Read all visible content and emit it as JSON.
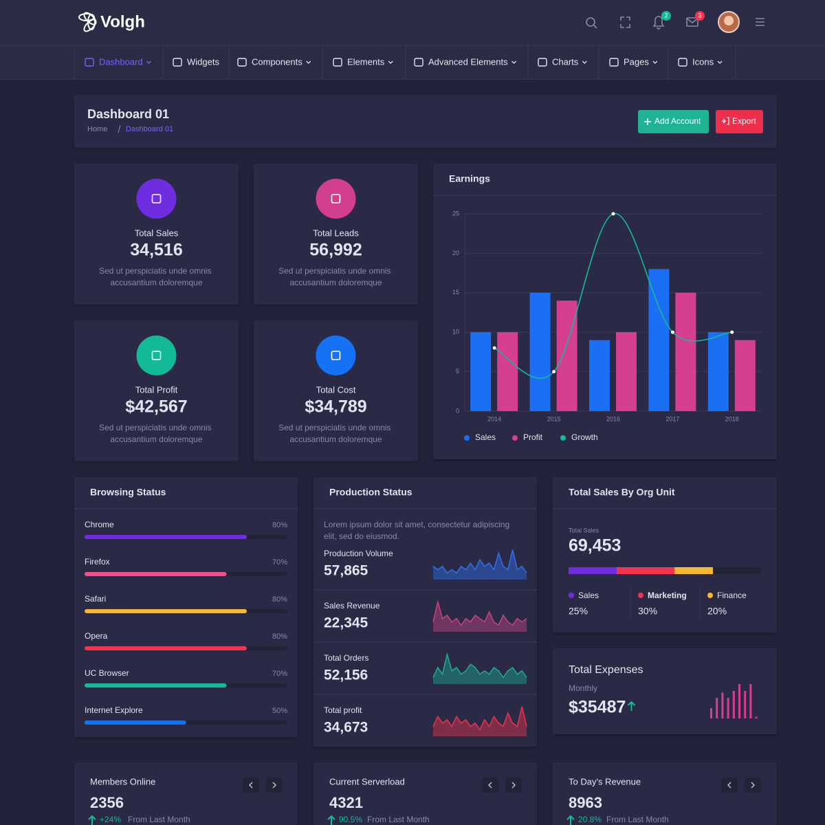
{
  "header": {
    "brand": "Volgh",
    "notifications_badge": "2",
    "mail_badge": "3"
  },
  "nav": [
    "Dashboard",
    "Widgets",
    "Components",
    "Elements",
    "Advanced Elements",
    "Charts",
    "Pages",
    "Icons"
  ],
  "page_header": {
    "title": "Dashboard 01",
    "breadcrumb": [
      "Home",
      "Dashboard 01"
    ],
    "buttons": [
      "Add Account",
      "Export"
    ]
  },
  "stats": [
    {
      "label": "Total Sales",
      "value": "34,516",
      "text": "Sed ut perspiciatis unde omnis accusantium doloremque",
      "color": "#6e2ee0"
    },
    {
      "label": "Total Leads",
      "value": "56,992",
      "text": "Sed ut perspiciatis unde omnis accusantium doloremque",
      "color": "#d33f8f"
    },
    {
      "label": "Total Profit",
      "value": "$42,567",
      "text": "Sed ut perspiciatis unde omnis accusantium doloremque",
      "color": "#12ba98"
    },
    {
      "label": "Total Cost",
      "value": "$34,789",
      "text": "Sed ut perspiciatis unde omnis accusantium doloremque",
      "color": "#1672f5"
    }
  ],
  "chart_data": {
    "type": "bar",
    "title": "Earnings",
    "categories": [
      "2014",
      "2015",
      "2016",
      "2017",
      "2018"
    ],
    "series": [
      {
        "name": "Sales",
        "color": "#1a6ff5",
        "values": [
          10,
          15,
          9,
          18,
          10
        ]
      },
      {
        "name": "Profit",
        "color": "#d63f90",
        "values": [
          10,
          14,
          10,
          15,
          9
        ]
      },
      {
        "name": "Growth",
        "color": "#12ba98",
        "type": "line",
        "values": [
          8,
          5,
          25,
          10,
          10
        ]
      }
    ],
    "ylim": [
      0,
      25
    ],
    "yticks": [
      0,
      5,
      10,
      15,
      20,
      25
    ],
    "grid": true
  },
  "browsing": {
    "title": "Browsing Status",
    "items": [
      {
        "name": "Chrome",
        "value": 80,
        "label": "80%",
        "color": "#6e2ee0"
      },
      {
        "name": "Firefox",
        "value": 70,
        "label": "70%",
        "color": "#f2508c"
      },
      {
        "name": "Safari",
        "value": 80,
        "label": "80%",
        "color": "#f7b731"
      },
      {
        "name": "Opera",
        "value": 80,
        "label": "80%",
        "color": "#f5334f"
      },
      {
        "name": "UC Browser",
        "value": 70,
        "label": "70%",
        "color": "#12ba98"
      },
      {
        "name": "Internet Explore",
        "value": 50,
        "label": "50%",
        "color": "#1672f5"
      }
    ]
  },
  "production": {
    "title": "Production Status",
    "text": "Lorem ipsum dolor sit amet, consectetur adipiscing elit, sed do eiusmod.",
    "items": [
      {
        "label": "Production Volume",
        "value": "57,865",
        "color": "#2f6ee6",
        "spark": [
          4,
          3,
          4,
          2,
          3,
          2,
          4,
          3,
          5,
          3,
          6,
          4,
          5,
          3,
          8,
          4,
          3,
          9,
          3,
          4,
          2
        ]
      },
      {
        "label": "Sales Revenue",
        "value": "22,345",
        "color": "#c2447e",
        "spark": [
          3,
          9,
          4,
          5,
          3,
          4,
          2,
          4,
          3,
          5,
          4,
          3,
          6,
          3,
          2,
          5,
          3,
          2,
          4,
          3,
          4
        ]
      },
      {
        "label": "Total Orders",
        "value": "52,156",
        "color": "#1ba98e",
        "spark": [
          2,
          5,
          3,
          9,
          4,
          5,
          3,
          4,
          6,
          5,
          3,
          4,
          3,
          5,
          4,
          2,
          4,
          5,
          3,
          4,
          2
        ]
      },
      {
        "label": "Total profit",
        "value": "34,673",
        "color": "#e5324b",
        "spark": [
          3,
          6,
          4,
          5,
          3,
          6,
          4,
          5,
          3,
          4,
          2,
          5,
          3,
          6,
          4,
          3,
          7,
          4,
          3,
          9,
          3
        ]
      }
    ]
  },
  "org_unit": {
    "title": "Total Sales By Org Unit",
    "caption": "Total Sales",
    "value": "69,453",
    "segments": [
      {
        "name": "Sales",
        "value": 25,
        "label": "25%",
        "color": "#6e2ee0"
      },
      {
        "name": "Marketing",
        "value": 30,
        "label": "30%",
        "color": "#f5334f"
      },
      {
        "name": "Finance",
        "value": 20,
        "label": "20%",
        "color": "#f7b731"
      }
    ]
  },
  "expenses": {
    "title": "Total Expenses",
    "period": "Monthly",
    "value": "$35487",
    "color": "#d63f90",
    "bars": [
      3,
      6,
      7.5,
      6,
      8,
      10,
      8,
      10,
      0.5
    ]
  },
  "bottom": [
    {
      "title": "Members Online",
      "value": "2356",
      "change": "+24%",
      "note": "From Last Month"
    },
    {
      "title": "Current Serverload",
      "value": "4321",
      "change": "90.5%",
      "note": "From Last Month"
    },
    {
      "title": "To Day's Revenue",
      "value": "8963",
      "change": "20.8%",
      "note": "From Last Month"
    }
  ]
}
